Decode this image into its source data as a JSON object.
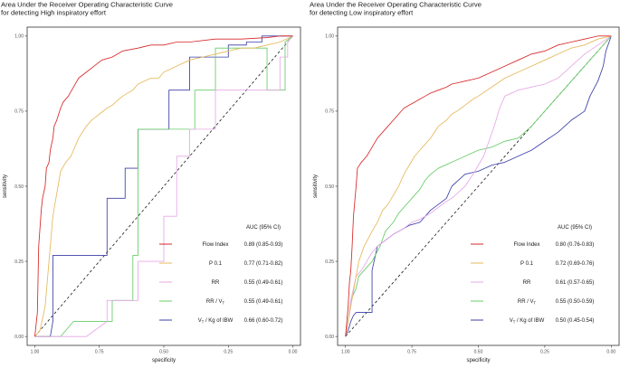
{
  "chart_data": [
    {
      "type": "line",
      "title": "Area Under the Receiver Operating Characteristic Curve\nfor detecting High inspiratory effort",
      "xlabel": "specificity",
      "ylabel": "sensitivity",
      "xlim": [
        1.0,
        0.0
      ],
      "ylim": [
        0.0,
        1.0
      ],
      "x_ticks": [
        "1.00",
        "0.75",
        "0.50",
        "0.25",
        "0.00"
      ],
      "y_ticks": [
        "0.00",
        "0.25",
        "0.50",
        "0.75",
        "1.00"
      ],
      "reference_line": "diagonal",
      "legend_title": "AUC (95% CI)",
      "series": [
        {
          "name": "Flow Index",
          "sub": "",
          "name_tail": "",
          "auc": "0.89 (0.85-0.93)",
          "color": "#d62728",
          "x": [
            1.0,
            0.99,
            0.985,
            0.975,
            0.97,
            0.96,
            0.955,
            0.945,
            0.94,
            0.93,
            0.925,
            0.915,
            0.9,
            0.89,
            0.87,
            0.85,
            0.83,
            0.8,
            0.77,
            0.74,
            0.7,
            0.66,
            0.6,
            0.55,
            0.5,
            0.45,
            0.4,
            0.3,
            0.2,
            0.1,
            0.05,
            0.0
          ],
          "y": [
            0.0,
            0.08,
            0.3,
            0.42,
            0.46,
            0.5,
            0.56,
            0.58,
            0.62,
            0.66,
            0.7,
            0.72,
            0.76,
            0.78,
            0.8,
            0.83,
            0.86,
            0.88,
            0.9,
            0.92,
            0.93,
            0.95,
            0.96,
            0.97,
            0.97,
            0.98,
            0.98,
            0.99,
            0.99,
            0.995,
            1.0,
            1.0
          ]
        },
        {
          "name": "P 0.1",
          "sub": "",
          "name_tail": "",
          "auc": "0.77 (0.71-0.82)",
          "color": "#e6b85c",
          "x": [
            1.0,
            0.98,
            0.96,
            0.95,
            0.94,
            0.93,
            0.92,
            0.91,
            0.9,
            0.88,
            0.86,
            0.85,
            0.83,
            0.8,
            0.78,
            0.75,
            0.72,
            0.7,
            0.66,
            0.62,
            0.6,
            0.55,
            0.52,
            0.5,
            0.45,
            0.4,
            0.35,
            0.3,
            0.25,
            0.2,
            0.15,
            0.1,
            0.05,
            0.0
          ],
          "y": [
            0.0,
            0.02,
            0.1,
            0.2,
            0.3,
            0.4,
            0.45,
            0.5,
            0.55,
            0.58,
            0.6,
            0.62,
            0.66,
            0.7,
            0.72,
            0.74,
            0.76,
            0.77,
            0.8,
            0.82,
            0.84,
            0.86,
            0.86,
            0.88,
            0.9,
            0.92,
            0.93,
            0.94,
            0.95,
            0.96,
            0.96,
            0.97,
            0.98,
            1.0
          ]
        },
        {
          "name": "RR",
          "sub": "",
          "name_tail": "",
          "auc": "0.55 (0.49-0.61)",
          "color": "#e6a8e6",
          "x": [
            1.0,
            0.95,
            0.8,
            0.72,
            0.72,
            0.6,
            0.6,
            0.5,
            0.5,
            0.45,
            0.45,
            0.4,
            0.4,
            0.3,
            0.3,
            0.05,
            0.05,
            0.02,
            0.02,
            0.0
          ],
          "y": [
            0.0,
            0.0,
            0.0,
            0.05,
            0.12,
            0.12,
            0.25,
            0.25,
            0.4,
            0.4,
            0.6,
            0.6,
            0.69,
            0.69,
            0.82,
            0.82,
            0.93,
            0.93,
            0.98,
            1.0
          ]
        },
        {
          "name": "RR / V",
          "sub": "T",
          "name_tail": "",
          "auc": "0.55 (0.49-0.61)",
          "color": "#66cc66",
          "x": [
            1.0,
            0.9,
            0.85,
            0.7,
            0.7,
            0.62,
            0.62,
            0.6,
            0.6,
            0.38,
            0.38,
            0.3,
            0.3,
            0.1,
            0.1,
            0.03,
            0.03,
            0.0
          ],
          "y": [
            0.0,
            0.0,
            0.05,
            0.05,
            0.12,
            0.12,
            0.27,
            0.27,
            0.69,
            0.69,
            0.82,
            0.82,
            0.96,
            0.96,
            0.82,
            0.82,
            0.98,
            1.0
          ]
        },
        {
          "name": "V",
          "sub": "T",
          "name_tail": " / Kg of IBW",
          "auc": "0.66 (0.60-0.72)",
          "color": "#3b3fa8",
          "x": [
            1.0,
            0.94,
            0.93,
            0.93,
            0.9,
            0.9,
            0.72,
            0.72,
            0.65,
            0.65,
            0.6,
            0.6,
            0.48,
            0.48,
            0.4,
            0.4,
            0.25,
            0.25,
            0.18,
            0.18,
            0.12,
            0.12,
            0.0
          ],
          "y": [
            0.0,
            0.0,
            0.05,
            0.27,
            0.27,
            0.27,
            0.27,
            0.46,
            0.46,
            0.56,
            0.56,
            0.69,
            0.69,
            0.82,
            0.82,
            0.93,
            0.93,
            0.97,
            0.97,
            0.98,
            0.98,
            1.0,
            1.0
          ]
        }
      ]
    },
    {
      "type": "line",
      "title": "Area Under the Receiver Operating Characteristic Curve\nfor detecting Low inspiratory effort",
      "xlabel": "specificity",
      "ylabel": "sensitivity",
      "xlim": [
        1.0,
        0.0
      ],
      "ylim": [
        0.0,
        1.0
      ],
      "x_ticks": [
        "1.00",
        "0.75",
        "0.50",
        "0.25",
        "0.00"
      ],
      "y_ticks": [
        "0.00",
        "0.25",
        "0.50",
        "0.75",
        "1.00"
      ],
      "reference_line": "diagonal",
      "legend_title": "AUC (95% CI)",
      "series": [
        {
          "name": "Flow Index",
          "sub": "",
          "name_tail": "",
          "auc": "0.80 (0.76-0.83)",
          "color": "#d62728",
          "x": [
            1.0,
            0.995,
            0.99,
            0.985,
            0.98,
            0.975,
            0.97,
            0.96,
            0.955,
            0.94,
            0.92,
            0.9,
            0.88,
            0.86,
            0.84,
            0.82,
            0.8,
            0.78,
            0.76,
            0.74,
            0.72,
            0.7,
            0.68,
            0.65,
            0.62,
            0.6,
            0.55,
            0.5,
            0.45,
            0.4,
            0.35,
            0.3,
            0.25,
            0.2,
            0.15,
            0.1,
            0.05,
            0.0
          ],
          "y": [
            0.0,
            0.05,
            0.1,
            0.18,
            0.22,
            0.3,
            0.4,
            0.5,
            0.56,
            0.58,
            0.6,
            0.63,
            0.66,
            0.68,
            0.7,
            0.72,
            0.74,
            0.76,
            0.77,
            0.78,
            0.79,
            0.8,
            0.81,
            0.82,
            0.83,
            0.84,
            0.85,
            0.86,
            0.88,
            0.9,
            0.92,
            0.94,
            0.95,
            0.97,
            0.98,
            0.99,
            1.0,
            1.0
          ]
        },
        {
          "name": "P 0.1",
          "sub": "",
          "name_tail": "",
          "auc": "0.72 (0.69-0.76)",
          "color": "#e6b85c",
          "x": [
            1.0,
            0.99,
            0.98,
            0.97,
            0.96,
            0.95,
            0.93,
            0.9,
            0.88,
            0.86,
            0.84,
            0.82,
            0.8,
            0.78,
            0.76,
            0.74,
            0.72,
            0.7,
            0.68,
            0.65,
            0.62,
            0.6,
            0.58,
            0.55,
            0.52,
            0.5,
            0.45,
            0.4,
            0.35,
            0.3,
            0.25,
            0.2,
            0.15,
            0.1,
            0.05,
            0.0
          ],
          "y": [
            0.0,
            0.05,
            0.1,
            0.15,
            0.2,
            0.25,
            0.3,
            0.35,
            0.38,
            0.42,
            0.44,
            0.47,
            0.5,
            0.54,
            0.57,
            0.6,
            0.62,
            0.64,
            0.66,
            0.7,
            0.72,
            0.74,
            0.75,
            0.77,
            0.79,
            0.8,
            0.83,
            0.86,
            0.88,
            0.9,
            0.92,
            0.94,
            0.96,
            0.97,
            0.99,
            1.0
          ]
        },
        {
          "name": "RR",
          "sub": "",
          "name_tail": "",
          "auc": "0.61 (0.57-0.65)",
          "color": "#e6a8e6",
          "x": [
            1.0,
            0.99,
            0.98,
            0.97,
            0.96,
            0.94,
            0.92,
            0.9,
            0.88,
            0.85,
            0.82,
            0.8,
            0.78,
            0.75,
            0.72,
            0.7,
            0.68,
            0.65,
            0.62,
            0.6,
            0.55,
            0.52,
            0.5,
            0.48,
            0.46,
            0.44,
            0.42,
            0.4,
            0.35,
            0.3,
            0.25,
            0.2,
            0.15,
            0.1,
            0.05,
            0.0
          ],
          "y": [
            0.0,
            0.05,
            0.12,
            0.16,
            0.2,
            0.22,
            0.25,
            0.28,
            0.3,
            0.32,
            0.34,
            0.35,
            0.36,
            0.38,
            0.39,
            0.4,
            0.41,
            0.43,
            0.45,
            0.46,
            0.5,
            0.54,
            0.57,
            0.6,
            0.65,
            0.7,
            0.76,
            0.8,
            0.82,
            0.83,
            0.84,
            0.86,
            0.9,
            0.94,
            0.97,
            1.0
          ]
        },
        {
          "name": "RR / V",
          "sub": "T",
          "name_tail": "",
          "auc": "0.55 (0.50-0.59)",
          "color": "#66cc66",
          "x": [
            1.0,
            0.99,
            0.98,
            0.96,
            0.95,
            0.93,
            0.9,
            0.87,
            0.85,
            0.82,
            0.8,
            0.78,
            0.75,
            0.72,
            0.7,
            0.68,
            0.65,
            0.6,
            0.55,
            0.5,
            0.45,
            0.4,
            0.35,
            0.3,
            0.25,
            0.2,
            0.15,
            0.1,
            0.05,
            0.0
          ],
          "y": [
            0.0,
            0.05,
            0.12,
            0.16,
            0.2,
            0.22,
            0.25,
            0.3,
            0.35,
            0.38,
            0.41,
            0.43,
            0.46,
            0.49,
            0.52,
            0.54,
            0.56,
            0.58,
            0.6,
            0.62,
            0.63,
            0.65,
            0.66,
            0.7,
            0.75,
            0.8,
            0.85,
            0.9,
            0.95,
            1.0
          ]
        },
        {
          "name": "V",
          "sub": "T",
          "name_tail": " / Kg of IBW",
          "auc": "0.50 (0.45-0.54)",
          "color": "#3b3fa8",
          "x": [
            1.0,
            0.99,
            0.98,
            0.97,
            0.96,
            0.95,
            0.93,
            0.9,
            0.9,
            0.88,
            0.85,
            0.82,
            0.8,
            0.76,
            0.72,
            0.7,
            0.68,
            0.65,
            0.62,
            0.6,
            0.55,
            0.5,
            0.45,
            0.4,
            0.35,
            0.3,
            0.25,
            0.2,
            0.15,
            0.1,
            0.08,
            0.05,
            0.03,
            0.02,
            0.0
          ],
          "y": [
            0.0,
            0.02,
            0.05,
            0.07,
            0.08,
            0.08,
            0.08,
            0.08,
            0.22,
            0.3,
            0.32,
            0.34,
            0.35,
            0.37,
            0.38,
            0.4,
            0.42,
            0.44,
            0.46,
            0.5,
            0.54,
            0.55,
            0.57,
            0.58,
            0.6,
            0.62,
            0.65,
            0.68,
            0.72,
            0.75,
            0.8,
            0.85,
            0.9,
            0.95,
            1.0
          ]
        }
      ]
    }
  ]
}
